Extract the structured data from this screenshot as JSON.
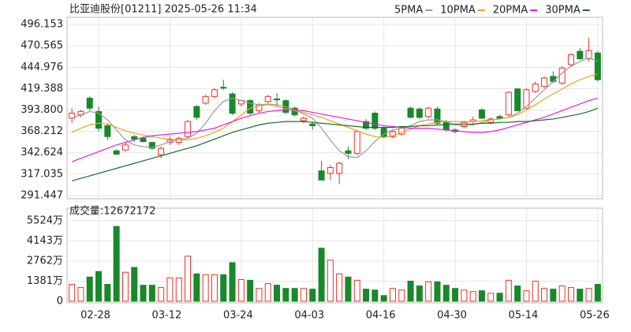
{
  "chart_data": [
    {
      "type": "candlestick",
      "title": "比亚迪股份[01211] 2025-05-26 11:34",
      "categories": [
        null,
        null,
        null,
        "02-28",
        null,
        null,
        null,
        null,
        null,
        null,
        null,
        "03-12",
        null,
        null,
        null,
        null,
        null,
        null,
        null,
        "03-24",
        null,
        null,
        null,
        null,
        null,
        null,
        null,
        "04-03",
        null,
        null,
        null,
        null,
        null,
        null,
        null,
        "04-16",
        null,
        null,
        null,
        null,
        null,
        null,
        null,
        "04-30",
        null,
        null,
        null,
        null,
        null,
        null,
        null,
        "05-14",
        null,
        null,
        null,
        null,
        null,
        null,
        null,
        "05-26"
      ],
      "open": [
        384,
        388,
        408,
        392,
        375,
        345,
        346,
        362,
        360,
        355,
        340,
        355,
        355,
        362,
        398,
        402,
        410,
        421,
        413,
        401,
        405,
        393,
        404,
        407,
        405,
        396,
        381,
        377,
        321,
        318,
        318,
        345,
        342,
        380,
        390,
        372,
        362,
        365,
        396,
        395,
        386,
        395,
        380,
        370,
        374,
        380,
        394,
        379,
        386,
        388,
        419,
        396,
        416,
        422,
        434,
        426,
        448,
        464,
        455,
        462
      ],
      "high": [
        396,
        394,
        410,
        398,
        378,
        347,
        355,
        364,
        362,
        356,
        350,
        362,
        362,
        382,
        400,
        412,
        420,
        430,
        415,
        406,
        407,
        402,
        412,
        414,
        407,
        398,
        386,
        380,
        333,
        328,
        332,
        350,
        370,
        383,
        392,
        374,
        370,
        374,
        398,
        397,
        398,
        398,
        382,
        372,
        381,
        386,
        396,
        385,
        388,
        416,
        420,
        420,
        428,
        434,
        440,
        446,
        462,
        468,
        480,
        464
      ],
      "low": [
        378,
        385,
        393,
        368,
        358,
        340,
        344,
        356,
        355,
        346,
        336,
        352,
        352,
        360,
        382,
        400,
        408,
        418,
        388,
        398,
        388,
        390,
        402,
        398,
        389,
        386,
        378,
        370,
        310,
        310,
        305,
        335,
        340,
        370,
        370,
        360,
        360,
        363,
        384,
        383,
        384,
        376,
        368,
        366,
        372,
        378,
        383,
        377,
        383,
        386,
        392,
        394,
        414,
        420,
        426,
        424,
        446,
        454,
        452,
        428
      ],
      "close": [
        390,
        392,
        396,
        372,
        362,
        341,
        352,
        359,
        356,
        348,
        348,
        358,
        360,
        380,
        385,
        410,
        418,
        420,
        390,
        405,
        390,
        400,
        410,
        406,
        391,
        388,
        384,
        375,
        310,
        325,
        330,
        342,
        368,
        372,
        372,
        362,
        368,
        372,
        385,
        385,
        396,
        378,
        370,
        368,
        379,
        382,
        384,
        383,
        384,
        415,
        393,
        418,
        425,
        432,
        428,
        444,
        460,
        455,
        465,
        430
      ],
      "up_color": "#e8332a",
      "down_color": "#17892a",
      "series": [
        {
          "name": "5PMA",
          "color": "#9a9a9a",
          "values": [
            384,
            388,
            392,
            390,
            382,
            370,
            358,
            352,
            350,
            349,
            352,
            356,
            358,
            360,
            366,
            378,
            393,
            404,
            408,
            405,
            402,
            400,
            401,
            400,
            398,
            394,
            389,
            384,
            372,
            358,
            345,
            338,
            337,
            345,
            356,
            365,
            370,
            372,
            375,
            380,
            382,
            382,
            380,
            376,
            375,
            376,
            379,
            382,
            383,
            385,
            390,
            398,
            408,
            418,
            428,
            438,
            446,
            452,
            456,
            452
          ]
        },
        {
          "name": "10PMA",
          "color": "#f0a020",
          "values": [
            367,
            372,
            376,
            378,
            377,
            373,
            369,
            366,
            364,
            362,
            360,
            359,
            358,
            358,
            360,
            363,
            367,
            372,
            380,
            388,
            396,
            399,
            400,
            398,
            395,
            393,
            391,
            388,
            385,
            381,
            377,
            373,
            369,
            365,
            362,
            361,
            363,
            367,
            371,
            375,
            377,
            379,
            380,
            380,
            380,
            380,
            381,
            382,
            383,
            385,
            388,
            394,
            400,
            407,
            413,
            419,
            425,
            430,
            434,
            437
          ]
        },
        {
          "name": "20PMA",
          "color": "#e020e0",
          "values": [
            332,
            336,
            340,
            344,
            348,
            352,
            355,
            358,
            361,
            363,
            364,
            365,
            366,
            367,
            368,
            370,
            372,
            376,
            380,
            384,
            387,
            390,
            392,
            393,
            394,
            394,
            393,
            391,
            389,
            387,
            385,
            383,
            381,
            379,
            377,
            375,
            374,
            373,
            372,
            372,
            372,
            371,
            370,
            369,
            368,
            367,
            367,
            368,
            370,
            373,
            376,
            379,
            382,
            385,
            389,
            393,
            397,
            401,
            405,
            408
          ]
        },
        {
          "name": "30PMA",
          "color": "#1a6a2a",
          "values": [
            309,
            312,
            315,
            318,
            321,
            324,
            327,
            330,
            333,
            336,
            339,
            342,
            345,
            348,
            351,
            355,
            359,
            363,
            367,
            370,
            373,
            376,
            378,
            379,
            380,
            380,
            380,
            379,
            378,
            377,
            376,
            375,
            374,
            373,
            373,
            373,
            373,
            374,
            374,
            375,
            375,
            376,
            376,
            377,
            377,
            377,
            378,
            378,
            379,
            379,
            380,
            380,
            381,
            382,
            383,
            385,
            387,
            389,
            392,
            396
          ]
        }
      ],
      "ylim": [
        291.447,
        496.153
      ],
      "yticks": [
        {
          "value": 291.447,
          "label": "291.447"
        },
        {
          "value": 317.035,
          "label": "317.035"
        },
        {
          "value": 342.624,
          "label": "342.624"
        },
        {
          "value": 368.212,
          "label": "368.212"
        },
        {
          "value": 393.8,
          "label": "393.800"
        },
        {
          "value": 419.388,
          "label": "419.388"
        },
        {
          "value": 444.976,
          "label": "444.976"
        },
        {
          "value": 470.565,
          "label": "470.565"
        },
        {
          "value": 496.153,
          "label": "496.153"
        }
      ],
      "grid": true
    },
    {
      "type": "bar",
      "title": "成交量:12672172",
      "values": [
        1160,
        940,
        1660,
        2040,
        1160,
        5130,
        1990,
        2320,
        1100,
        1100,
        940,
        1600,
        1600,
        3090,
        1880,
        1820,
        1820,
        1820,
        2650,
        1490,
        1440,
        880,
        1210,
        1100,
        880,
        880,
        880,
        830,
        3640,
        2820,
        1880,
        1660,
        1440,
        830,
        770,
        390,
        880,
        770,
        1380,
        1050,
        1330,
        1330,
        1100,
        880,
        770,
        660,
        720,
        550,
        550,
        1440,
        1050,
        720,
        1380,
        880,
        830,
        1050,
        940,
        830,
        880,
        1160
      ],
      "ylim": [
        0,
        5950
      ],
      "yticks": [
        0,
        {
          "value": 1381,
          "label": "1381万"
        },
        {
          "value": 2762,
          "label": "2762万"
        },
        {
          "value": 4143,
          "label": "4143万"
        },
        {
          "value": 5524,
          "label": "5524万"
        }
      ],
      "grid": true
    }
  ]
}
